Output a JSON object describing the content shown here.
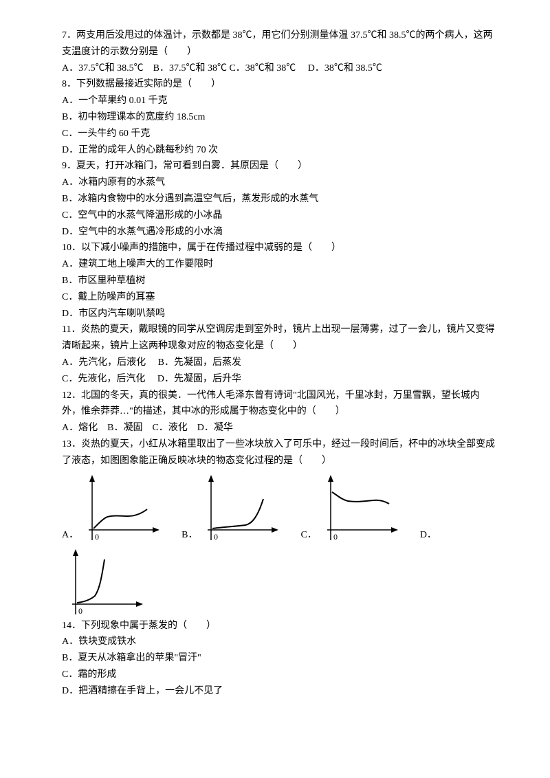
{
  "q7": {
    "text": "7．两支用后没甩过的体温计，示数都是 38℃，用它们分别测量体温 37.5℃和 38.5℃的两个病人，这两支温度计的示数分别是（　　）",
    "opts": "A．37.5℃和 38.5℃　B．37.5℃和 38℃ C．38℃和 38℃　 D．38℃和 38.5℃"
  },
  "q8": {
    "text": "8．下列数据最接近实际的是（　　）",
    "a": "A．一个苹果约 0.01 千克",
    "b": "B．初中物理课本的宽度约 18.5cm",
    "c": "C．一头牛约 60 千克",
    "d": "D．正常的成年人的心跳每秒约 70 次"
  },
  "q9": {
    "text": "9．夏天，打开冰箱门，常可看到白雾．其原因是（　　）",
    "a": "A．冰箱内原有的水蒸气",
    "b": "B．冰箱内食物中的水分遇到高温空气后，蒸发形成的水蒸气",
    "c": "C．空气中的水蒸气降温形成的小冰晶",
    "d": "D．空气中的水蒸气遇冷形成的小水滴"
  },
  "q10": {
    "text": "10．以下减小噪声的措施中，属于在传播过程中减弱的是（　　）",
    "a": "A．建筑工地上噪声大的工作要限时",
    "b": "B．市区里种草植树",
    "c": "C．戴上防噪声的耳塞",
    "d": "D．市区内汽车喇叭禁鸣"
  },
  "q11": {
    "text": "11．炎热的夏天，戴眼镜的同学从空调房走到室外时，镜片上出现一层薄雾，过了一会儿，镜片又变得清晰起来，镜片上这两种现象对应的物态变化是（　　）",
    "opts1": "A．先汽化，后液化　 B．先凝固，后蒸发",
    "opts2": "C．先液化，后汽化　 D．先凝固，后升华"
  },
  "q12": {
    "text": "12．北国的冬天，真的很美．一代伟人毛泽东曾有诗词\"北国风光，千里冰封，万里雪飘，望长城内外，惟余莽莽…\"的描述，其中冰的形成属于物态变化中的（　　）",
    "opts": "A．熔化　B．凝固　C．液化　D．凝华"
  },
  "q13": {
    "text": "13．炎热的夏天，小红从冰箱里取出了一些冰块放入了可乐中，经过一段时间后，杯中的冰块全部变成了液态，如图图象能正确反映冰块的物态变化过程的是（　　）",
    "la": "A．",
    "lb": "B．",
    "lc": "C．",
    "ld": "D．"
  },
  "q14": {
    "text": "14．下列现象中属于蒸发的（　　）",
    "a": "A．铁块变成铁水",
    "b": "B．夏天从冰箱拿出的苹果\"冒汗\"",
    "c": "C．霜的形成",
    "d": "D．把酒精擦在手背上，一会儿不见了"
  },
  "chart": {
    "axis_color": "#000000",
    "curve_color": "#000000",
    "zero_label": "0",
    "stroke_width": 1.5,
    "curve_width": 2
  }
}
